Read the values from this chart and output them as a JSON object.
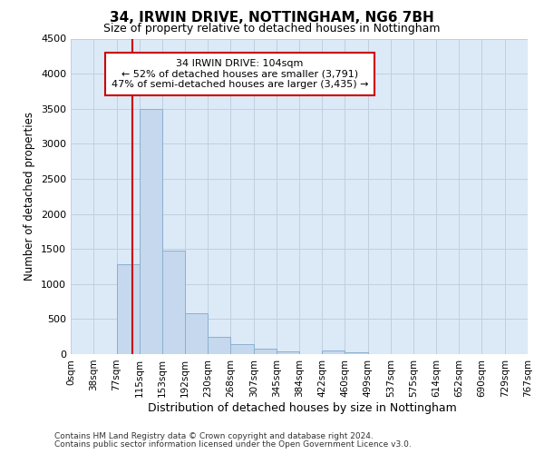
{
  "title1": "34, IRWIN DRIVE, NOTTINGHAM, NG6 7BH",
  "title2": "Size of property relative to detached houses in Nottingham",
  "xlabel": "Distribution of detached houses by size in Nottingham",
  "ylabel": "Number of detached properties",
  "bin_labels": [
    "0sqm",
    "38sqm",
    "77sqm",
    "115sqm",
    "153sqm",
    "192sqm",
    "230sqm",
    "268sqm",
    "307sqm",
    "345sqm",
    "384sqm",
    "422sqm",
    "460sqm",
    "499sqm",
    "537sqm",
    "575sqm",
    "614sqm",
    "652sqm",
    "690sqm",
    "729sqm",
    "767sqm"
  ],
  "bin_edges": [
    0,
    38,
    77,
    115,
    153,
    192,
    230,
    268,
    307,
    345,
    384,
    422,
    460,
    499,
    537,
    575,
    614,
    652,
    690,
    729,
    767
  ],
  "bar_values": [
    0,
    0,
    1280,
    3500,
    1480,
    580,
    240,
    140,
    80,
    40,
    0,
    50,
    20,
    0,
    0,
    0,
    0,
    0,
    0,
    0
  ],
  "bar_color": "#c5d8ee",
  "bar_edge_color": "#8ab0d0",
  "grid_color": "#c0d0e0",
  "background_color": "#dce9f7",
  "vline_x": 104,
  "vline_color": "#cc0000",
  "ylim": [
    0,
    4500
  ],
  "yticks": [
    0,
    500,
    1000,
    1500,
    2000,
    2500,
    3000,
    3500,
    4000,
    4500
  ],
  "annotation_text": "34 IRWIN DRIVE: 104sqm\n← 52% of detached houses are smaller (3,791)\n47% of semi-detached houses are larger (3,435) →",
  "annotation_box_color": "#ffffff",
  "annotation_box_edge": "#cc0000",
  "footer1": "Contains HM Land Registry data © Crown copyright and database right 2024.",
  "footer2": "Contains public sector information licensed under the Open Government Licence v3.0."
}
